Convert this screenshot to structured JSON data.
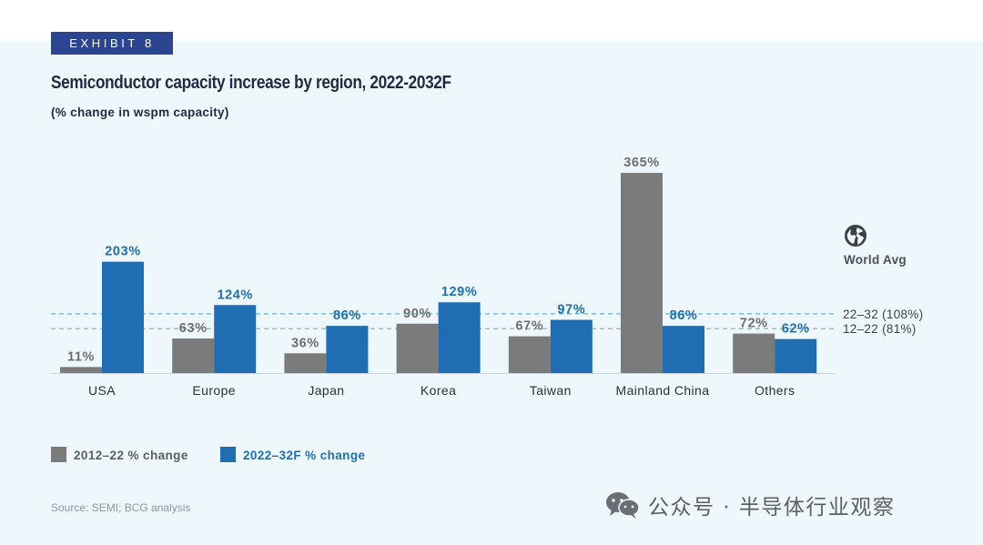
{
  "exhibit_label": "EXHIBIT 8",
  "chart_data": {
    "type": "bar",
    "title": "Semiconductor capacity increase by region, 2022-2032F",
    "subtitle": "(% change in wspm capacity)",
    "categories": [
      "USA",
      "Europe",
      "Japan",
      "Korea",
      "Taiwan",
      "Mainland China",
      "Others"
    ],
    "series": [
      {
        "name": "2012–22 % change",
        "values": [
          11,
          63,
          36,
          90,
          67,
          365,
          72
        ],
        "color": "#7b7b7b",
        "label_color": "#6e6e6e"
      },
      {
        "name": "2022–32F % change",
        "values": [
          203,
          124,
          86,
          129,
          97,
          86,
          62
        ],
        "color": "#1f6db3",
        "label_color": "#1f6db3"
      }
    ],
    "data_labels": [
      [
        "11%",
        "63%",
        "36%",
        "90%",
        "67%",
        "365%",
        "72%"
      ],
      [
        "203%",
        "124%",
        "86%",
        "129%",
        "97%",
        "86%",
        "62%"
      ]
    ],
    "reference_lines": [
      {
        "label": "22–32 (108%)",
        "value": 108,
        "color": "#58b7d6"
      },
      {
        "label": "12–22 (81%)",
        "value": 81,
        "color": "#9ab6bf"
      }
    ],
    "reference_title": "World Avg",
    "ylim": [
      0,
      380
    ],
    "grid": false,
    "legend_position": "bottom-left",
    "source": "Source: SEMI; BCG analysis"
  },
  "watermark_text": "公众号 · 半导体行业观察",
  "icons": [
    "globe-icon",
    "wechat-icon"
  ]
}
